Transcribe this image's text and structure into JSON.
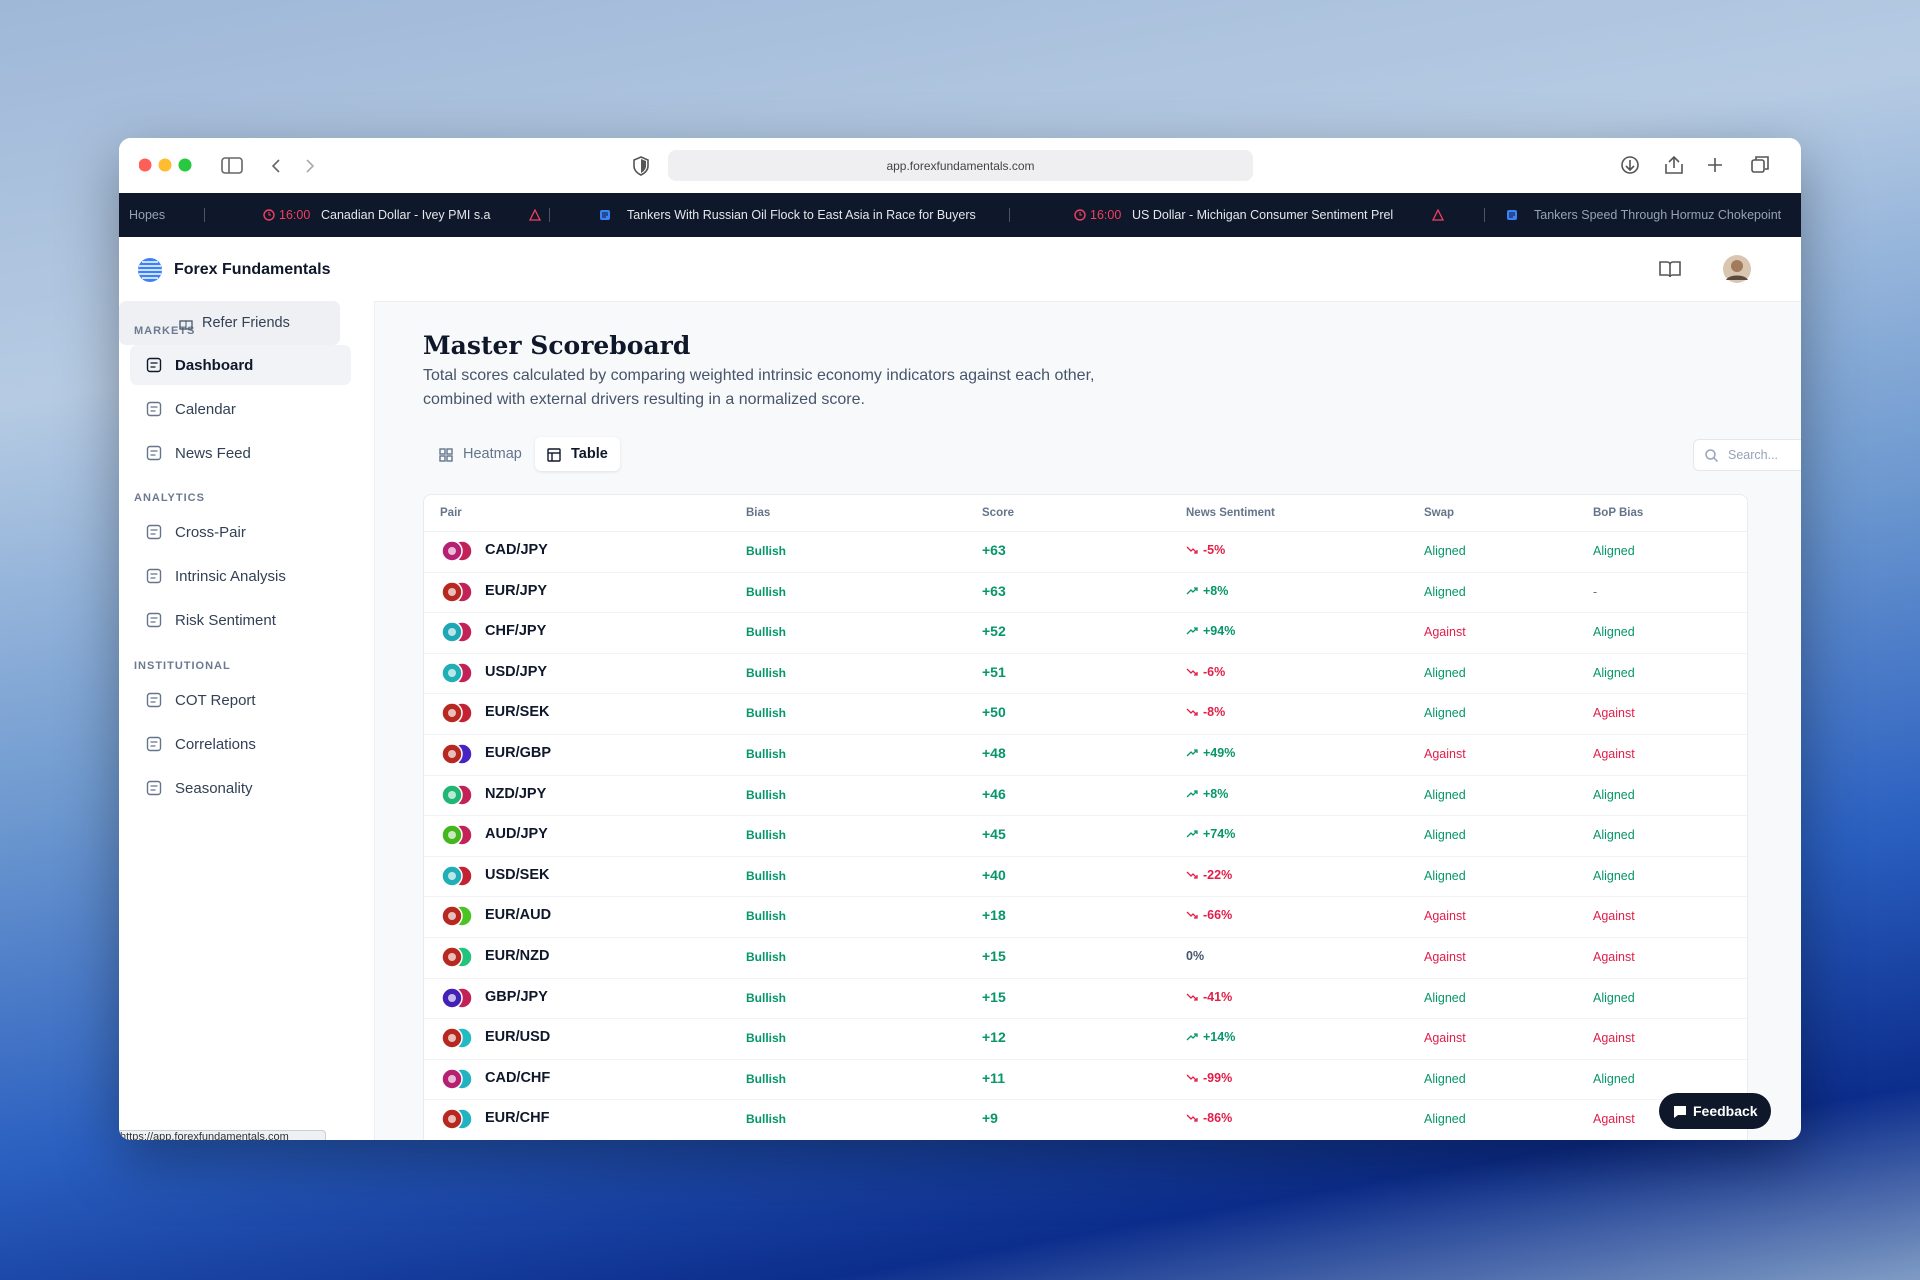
{
  "browser": {
    "url": "app.forexfundamentals.com",
    "status_url": "https://app.forexfundamentals.com"
  },
  "ticker": [
    {
      "time": null,
      "text": "Hopes"
    },
    {
      "time": "16:00",
      "text": "Canadian Dollar - Ivey PMI s.a"
    },
    {
      "time": null,
      "text": "Tankers With Russian Oil Flock to East Asia in Race for Buyers"
    },
    {
      "time": "16:00",
      "text": "US Dollar - Michigan Consumer Sentiment Prel"
    },
    {
      "time": null,
      "text": "Tankers Speed Through Hormuz Chokepoint"
    }
  ],
  "header": {
    "brand": "Forex Fundamentals"
  },
  "sidebar": {
    "sections": [
      {
        "title": "MARKETS",
        "items": [
          "Dashboard",
          "Calendar",
          "News Feed"
        ]
      },
      {
        "title": "ANALYTICS",
        "items": [
          "Cross-Pair",
          "Intrinsic Analysis",
          "Risk Sentiment"
        ]
      },
      {
        "title": "INSTITUTIONAL",
        "items": [
          "COT Report",
          "Correlations",
          "Seasonality"
        ]
      }
    ],
    "footer": "Refer Friends"
  },
  "main": {
    "title": "Master Scoreboard",
    "description": [
      "Total scores calculated by comparing weighted intrinsic economy indicators against each other,",
      "combined with external drivers resulting in a normalized score."
    ],
    "tabs": [
      "Heatmap",
      "Table"
    ],
    "search_placeholder": "Search..."
  },
  "table": {
    "columns": [
      "Pair",
      "Bias",
      "Score",
      "News Sentiment",
      "Swap",
      "BoP Bias"
    ],
    "rows": [
      [
        "CAD/JPY",
        "Bullish",
        "+63",
        "-5%",
        "Aligned",
        "Aligned"
      ],
      [
        "EUR/JPY",
        "Bullish",
        "+63",
        "+8%",
        "Aligned",
        "-"
      ],
      [
        "CHF/JPY",
        "Bullish",
        "+52",
        "+94%",
        "Against",
        "Aligned"
      ],
      [
        "USD/JPY",
        "Bullish",
        "+51",
        "-6%",
        "Aligned",
        "Aligned"
      ],
      [
        "EUR/SEK",
        "Bullish",
        "+50",
        "-8%",
        "Aligned",
        "Against"
      ],
      [
        "EUR/GBP",
        "Bullish",
        "+48",
        "+49%",
        "Against",
        "Against"
      ],
      [
        "NZD/JPY",
        "Bullish",
        "+46",
        "+8%",
        "Aligned",
        "Aligned"
      ],
      [
        "AUD/JPY",
        "Bullish",
        "+45",
        "+74%",
        "Aligned",
        "Aligned"
      ],
      [
        "USD/SEK",
        "Bullish",
        "+40",
        "-22%",
        "Aligned",
        "Aligned"
      ],
      [
        "EUR/AUD",
        "Bullish",
        "+18",
        "-66%",
        "Against",
        "Against"
      ],
      [
        "EUR/NZD",
        "Bullish",
        "+15",
        "0%",
        "Against",
        "Against"
      ],
      [
        "GBP/JPY",
        "Bullish",
        "+15",
        "-41%",
        "Aligned",
        "Aligned"
      ],
      [
        "EUR/USD",
        "Bullish",
        "+12",
        "+14%",
        "Against",
        "Against"
      ],
      [
        "CAD/CHF",
        "Bullish",
        "+11",
        "-99%",
        "Aligned",
        "Aligned"
      ],
      [
        "EUR/CHF",
        "Bullish",
        "+9",
        "-86%",
        "Aligned",
        "Against"
      ]
    ]
  },
  "feedback": "Feedback"
}
